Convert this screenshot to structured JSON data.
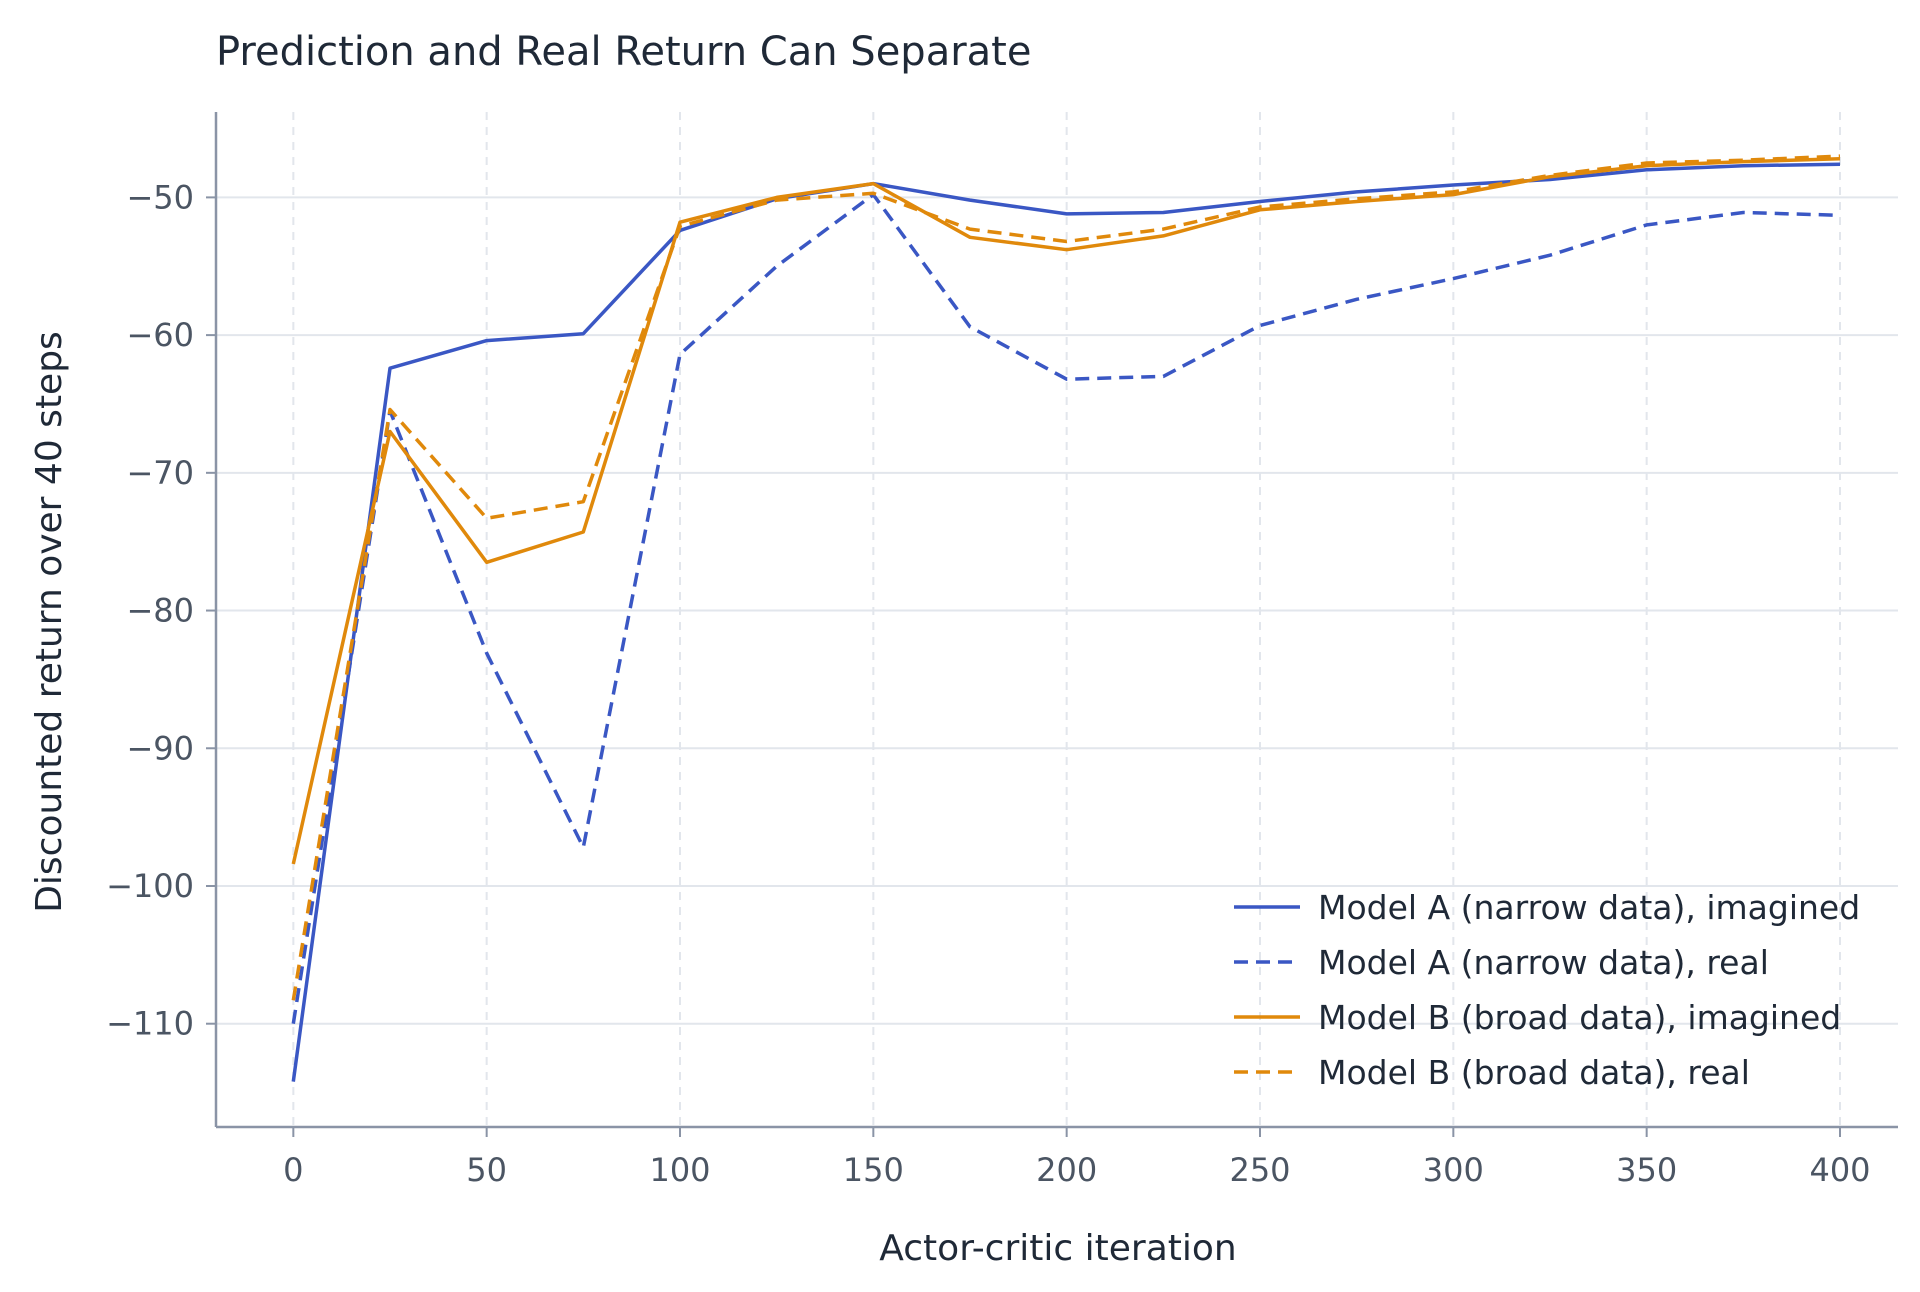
{
  "chart_data": {
    "type": "line",
    "title": "Prediction and Real Return Can Separate",
    "xlabel": "Actor-critic iteration",
    "ylabel": "Discounted return over 40 steps",
    "x": [
      0,
      25,
      50,
      75,
      100,
      125,
      150,
      175,
      200,
      225,
      250,
      275,
      300,
      325,
      350,
      375,
      400
    ],
    "xlim": [
      -20,
      415
    ],
    "ylim": [
      -117.5,
      -43.8
    ],
    "x_ticks": [
      0,
      50,
      100,
      150,
      200,
      250,
      300,
      350,
      400
    ],
    "y_ticks": [
      -110,
      -100,
      -90,
      -80,
      -70,
      -60,
      -50
    ],
    "grid": true,
    "legend_position": "lower-right",
    "series": [
      {
        "name": "Model A (narrow data), imagined",
        "color": "#3a57c4",
        "dash": "solid",
        "values": [
          -114.2,
          -62.4,
          -60.4,
          -59.9,
          -52.4,
          -50.1,
          -49.0,
          -50.2,
          -51.2,
          -51.1,
          -50.3,
          -49.6,
          -49.1,
          -48.7,
          -48.0,
          -47.7,
          -47.6
        ]
      },
      {
        "name": "Model A (narrow data), real",
        "color": "#3a57c4",
        "dash": "dashed",
        "values": [
          -110.0,
          -65.5,
          -83.1,
          -97.2,
          -61.4,
          -55.0,
          -49.8,
          -59.4,
          -63.2,
          -63.0,
          -59.3,
          -57.4,
          -55.9,
          -54.2,
          -52.0,
          -51.1,
          -51.3
        ]
      },
      {
        "name": "Model B (broad data), imagined",
        "color": "#e0890b",
        "dash": "solid",
        "values": [
          -98.4,
          -67.0,
          -76.5,
          -74.3,
          -51.8,
          -50.0,
          -49.0,
          -52.9,
          -53.8,
          -52.8,
          -50.9,
          -50.3,
          -49.8,
          -48.5,
          -47.7,
          -47.4,
          -47.2
        ]
      },
      {
        "name": "Model B (broad data), real",
        "color": "#e0890b",
        "dash": "dashed",
        "values": [
          -108.3,
          -65.4,
          -73.3,
          -72.1,
          -52.1,
          -50.2,
          -49.7,
          -52.3,
          -53.2,
          -52.3,
          -50.7,
          -50.1,
          -49.6,
          -48.4,
          -47.5,
          -47.3,
          -47.0
        ]
      }
    ]
  },
  "colors": {
    "axis": "#8a94a6",
    "grid": "#e2e6ec",
    "tick_text": "#4b5563"
  }
}
